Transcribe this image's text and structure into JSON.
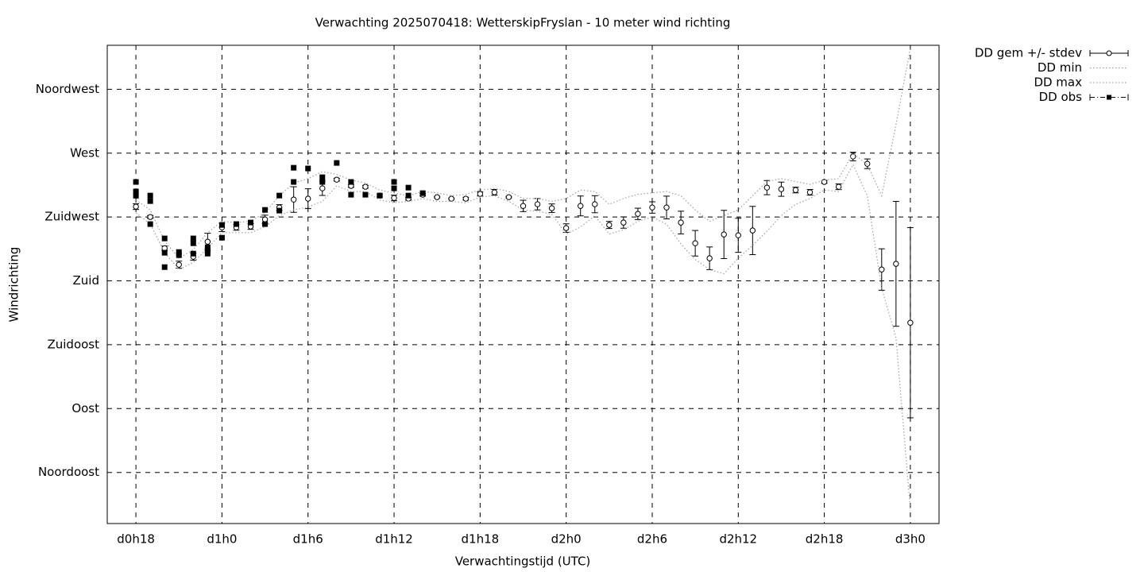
{
  "chart_data": {
    "type": "errorbar",
    "title": "Verwachting 2025070418: WetterskipFryslan - 10 meter wind richting",
    "x_label": "Verwachtingstijd (UTC)",
    "y_label": "Windrichting",
    "xlim": [
      16,
      74
    ],
    "ylim": [
      9,
      346
    ],
    "xticks": [
      {
        "value": 18,
        "label": "d0h18"
      },
      {
        "value": 24,
        "label": "d1h0"
      },
      {
        "value": 30,
        "label": "d1h6"
      },
      {
        "value": 36,
        "label": "d1h12"
      },
      {
        "value": 42,
        "label": "d1h18"
      },
      {
        "value": 48,
        "label": "d2h0"
      },
      {
        "value": 54,
        "label": "d2h6"
      },
      {
        "value": 60,
        "label": "d2h12"
      },
      {
        "value": 66,
        "label": "d2h18"
      },
      {
        "value": 72,
        "label": "d3h0"
      }
    ],
    "yticks": [
      {
        "value": 45,
        "label": "Noordoost"
      },
      {
        "value": 90,
        "label": "Oost"
      },
      {
        "value": 135,
        "label": "Zuidoost"
      },
      {
        "value": 180,
        "label": "Zuid"
      },
      {
        "value": 225,
        "label": "Zuidwest"
      },
      {
        "value": 270,
        "label": "West"
      },
      {
        "value": 315,
        "label": "Noordwest"
      }
    ],
    "grid": true,
    "legend": "outside-top-right",
    "x": [
      18,
      19,
      20,
      21,
      22,
      23,
      24,
      25,
      26,
      27,
      28,
      29,
      30,
      31,
      32,
      33,
      34,
      35,
      36,
      37,
      38,
      39,
      40,
      41,
      42,
      43,
      44,
      45,
      46,
      47,
      48,
      49,
      50,
      51,
      52,
      53,
      54,
      55,
      56,
      57,
      58,
      59,
      60,
      61,
      62,
      63,
      64,
      65,
      66,
      67,
      68,
      69,
      70,
      71,
      72
    ],
    "series": [
      {
        "name": "DD gem +/- stdev",
        "style": "errorbars",
        "color": "#000000",
        "values": [
          232.3,
          225,
          203,
          191.4,
          197,
          207.6,
          217.7,
          217.7,
          218.3,
          223.3,
          231.7,
          237.3,
          237.9,
          245.2,
          251.3,
          246.9,
          246.3,
          240.1,
          238.4,
          237.9,
          240.7,
          239,
          237.9,
          237.9,
          241.3,
          242.4,
          239,
          232.8,
          234,
          231.2,
          217.2,
          232.8,
          234,
          219.4,
          221.1,
          227.2,
          231.7,
          231.7,
          221.1,
          206.5,
          195.9,
          212.7,
          212.1,
          215.5,
          245.7,
          244.6,
          244,
          242.4,
          249.7,
          246.3,
          267.6,
          262.5,
          188,
          192,
          150.5
        ],
        "errors": [
          2,
          1,
          1.5,
          2.5,
          2.5,
          6,
          3,
          2,
          2,
          3,
          2,
          9,
          7,
          5,
          1,
          1,
          1,
          1,
          2,
          1,
          1,
          0.5,
          0.5,
          1,
          1.5,
          2,
          0.5,
          4,
          4,
          3,
          3,
          7,
          6,
          2.5,
          4,
          4,
          4,
          8,
          8,
          9,
          8,
          17,
          12,
          17,
          5,
          5,
          2,
          2,
          1,
          2,
          3,
          3.4,
          14.6,
          44,
          67
        ]
      },
      {
        "name": "DD min",
        "style": "dotted",
        "color": "#a0a0a0",
        "values": [
          228,
          220,
          200,
          188,
          193,
          203,
          214,
          214,
          214,
          218,
          226,
          230,
          232,
          236,
          247,
          243,
          243,
          237,
          235,
          236,
          238,
          236,
          236,
          235,
          239,
          240,
          236,
          230,
          229,
          227,
          213,
          218,
          226,
          213,
          216,
          222,
          225,
          220,
          206,
          195,
          188,
          185,
          196,
          205,
          215,
          226,
          234,
          238,
          244,
          243,
          262,
          240,
          175,
          140,
          19
        ]
      },
      {
        "name": "DD max",
        "style": "dotted",
        "color": "#a0a0a0",
        "values": [
          237,
          230,
          208,
          196,
          202,
          214,
          222,
          221,
          222,
          228,
          240,
          249,
          252,
          257,
          255,
          251,
          249,
          244,
          242,
          240,
          243,
          242,
          240,
          241,
          244,
          245,
          243,
          238,
          238,
          236,
          238,
          244,
          243,
          234,
          238,
          241,
          242,
          243,
          240,
          230,
          222,
          226,
          230,
          240,
          250,
          252,
          250,
          248,
          251,
          252,
          270,
          262,
          240,
          290,
          344
        ]
      },
      {
        "name": "DD obs",
        "style": "points",
        "color": "#000000",
        "x": [
          18,
          18,
          18,
          19,
          19,
          19,
          20,
          20,
          20,
          21,
          21,
          22,
          22,
          22,
          23,
          23,
          23,
          24,
          24,
          25,
          26,
          27,
          27,
          28,
          28,
          29,
          29,
          30,
          31,
          31,
          32,
          33,
          33,
          34,
          35,
          36,
          36,
          37,
          37,
          38
        ],
        "values": [
          249.7,
          243,
          240,
          240.1,
          236.2,
          220,
          209.9,
          199.8,
          189.7,
          200.3,
          198.1,
          209.9,
          206.5,
          199.2,
          203.7,
          201.5,
          199.2,
          219.4,
          210.4,
          220,
          221.1,
          230,
          220,
          240.1,
          229.5,
          259.7,
          249.7,
          259.2,
          253,
          249.7,
          263.1,
          249.7,
          240.7,
          240.7,
          240.1,
          249.7,
          245.2,
          245.7,
          240.1,
          241.8
        ]
      }
    ]
  }
}
